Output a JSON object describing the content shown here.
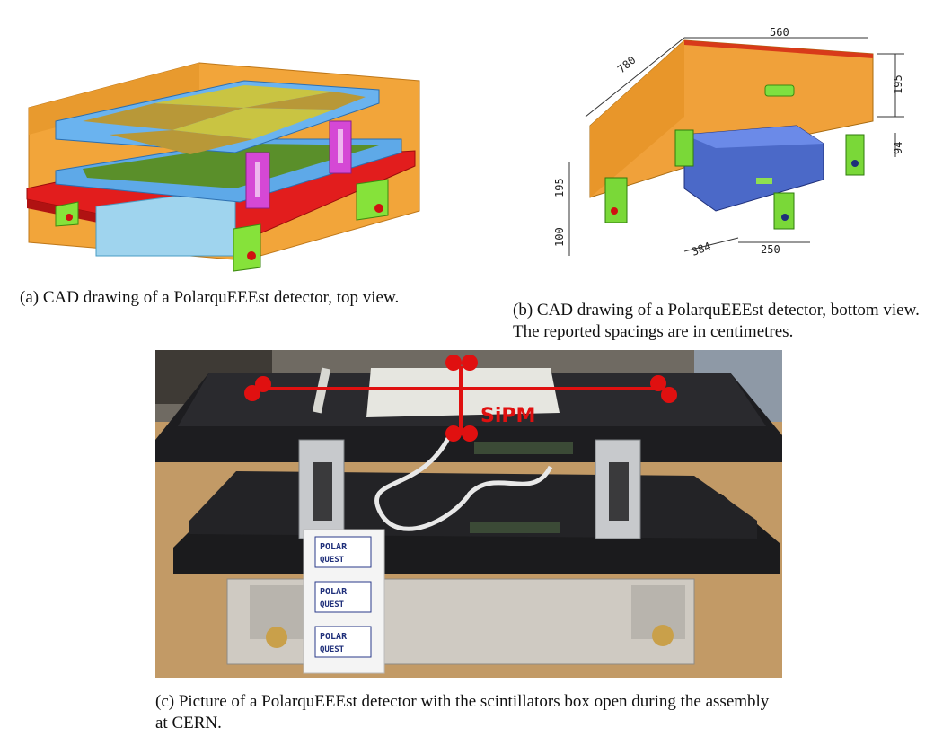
{
  "figure": {
    "panel_a": {
      "caption": "(a) CAD drawing of a PolarquEEEst detector, top view."
    },
    "panel_b": {
      "caption": "(b) CAD drawing of a PolarquEEEst detector, bottom view. The reported spacings are in centimetres.",
      "dimensions": {
        "top_width": "560",
        "depth": "780",
        "box_height": "195",
        "right_gap": "94",
        "left_height": "195",
        "leg_height": "100",
        "front_a": "384",
        "front_b": "250"
      }
    },
    "panel_c": {
      "caption": "(c) Picture of a PolarquEEEst detector with the scintillators box open during the assembly at CERN.",
      "annotation": "SiPM",
      "sticker_text_line1": "POLAR",
      "sticker_text_line2": "QUEST"
    }
  },
  "colors": {
    "frame_blue": "#5aa9e6",
    "tray_red": "#e02020",
    "box_orange": "#f0a030",
    "support_magenta": "#d040d0",
    "leg_green": "#80e030",
    "photo_annotation_red": "#e01010"
  }
}
